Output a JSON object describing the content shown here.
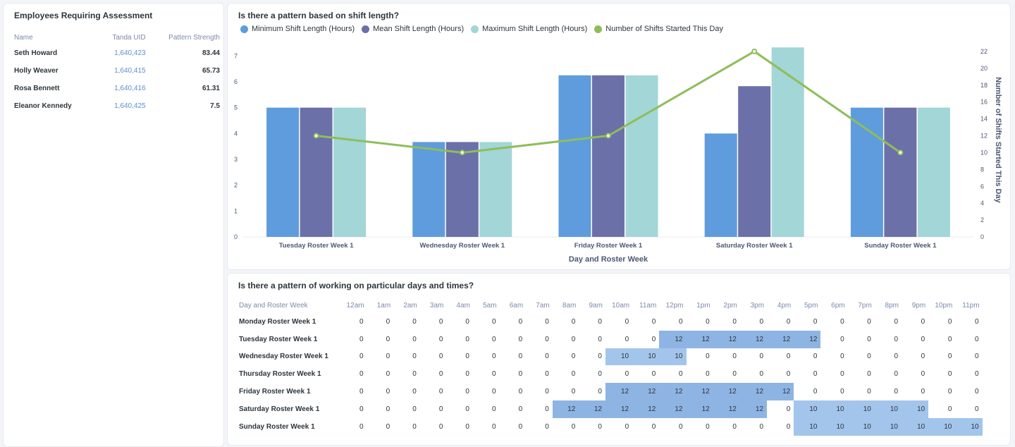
{
  "colors": {
    "min_bar": "#5f9cdd",
    "mean_bar": "#6c70a8",
    "max_bar": "#a3d6d6",
    "line": "#8fbd5a",
    "heat12": "#8eb4e3",
    "heat10": "#a3c5ec"
  },
  "employees": {
    "title": "Employees Requiring Assessment",
    "columns": [
      "Name",
      "Tanda UID",
      "Pattern Strength"
    ],
    "rows": [
      {
        "name": "Seth Howard",
        "uid": "1,640,423",
        "strength": "83.44"
      },
      {
        "name": "Holly Weaver",
        "uid": "1,640,415",
        "strength": "65.73"
      },
      {
        "name": "Rosa Bennett",
        "uid": "1,640,416",
        "strength": "61.31"
      },
      {
        "name": "Eleanor Kennedy",
        "uid": "1,640,425",
        "strength": "7.5"
      }
    ]
  },
  "chart_data": {
    "type": "bar",
    "title": "Is there a pattern based on shift length?",
    "xlabel": "Day and Roster Week",
    "ylabel": "",
    "y2label": "Number of Shifts Started This Day",
    "ylim": [
      0,
      7.5
    ],
    "y2lim": [
      0,
      23
    ],
    "yticks": [
      0,
      1,
      2,
      3,
      4,
      5,
      6,
      7
    ],
    "y2ticks": [
      0,
      2,
      4,
      6,
      8,
      10,
      12,
      14,
      16,
      18,
      20,
      22
    ],
    "categories": [
      "Tuesday Roster Week 1",
      "Wednesday Roster Week 1",
      "Friday Roster Week 1",
      "Saturday Roster Week 1",
      "Sunday Roster Week 1"
    ],
    "series": [
      {
        "name": "Minimum Shift Length (Hours)",
        "type": "bar",
        "axis": "left",
        "values": [
          5,
          3.67,
          6.25,
          4,
          5
        ]
      },
      {
        "name": "Mean Shift Length (Hours)",
        "type": "bar",
        "axis": "left",
        "values": [
          5,
          3.67,
          6.25,
          5.83,
          5
        ]
      },
      {
        "name": "Maximum Shift Length (Hours)",
        "type": "bar",
        "axis": "left",
        "values": [
          5,
          3.67,
          6.25,
          7.33,
          5
        ]
      },
      {
        "name": "Number of Shifts Started This Day",
        "type": "line",
        "axis": "right",
        "values": [
          12,
          10,
          12,
          22,
          10
        ]
      }
    ]
  },
  "heatmap": {
    "title": "Is there a pattern of working on particular days and times?",
    "row_header": "Day and Roster Week",
    "hours": [
      "12am",
      "1am",
      "2am",
      "3am",
      "4am",
      "5am",
      "6am",
      "7am",
      "8am",
      "9am",
      "10am",
      "11am",
      "12pm",
      "1pm",
      "2pm",
      "3pm",
      "4pm",
      "5pm",
      "6pm",
      "7pm",
      "8pm",
      "9pm",
      "10pm",
      "11pm"
    ],
    "rows": [
      {
        "label": "Monday Roster Week 1",
        "values": [
          0,
          0,
          0,
          0,
          0,
          0,
          0,
          0,
          0,
          0,
          0,
          0,
          0,
          0,
          0,
          0,
          0,
          0,
          0,
          0,
          0,
          0,
          0,
          0
        ]
      },
      {
        "label": "Tuesday Roster Week 1",
        "values": [
          0,
          0,
          0,
          0,
          0,
          0,
          0,
          0,
          0,
          0,
          0,
          0,
          12,
          12,
          12,
          12,
          12,
          12,
          0,
          0,
          0,
          0,
          0,
          0
        ]
      },
      {
        "label": "Wednesday Roster Week 1",
        "values": [
          0,
          0,
          0,
          0,
          0,
          0,
          0,
          0,
          0,
          0,
          10,
          10,
          10,
          0,
          0,
          0,
          0,
          0,
          0,
          0,
          0,
          0,
          0,
          0
        ]
      },
      {
        "label": "Thursday Roster Week 1",
        "values": [
          0,
          0,
          0,
          0,
          0,
          0,
          0,
          0,
          0,
          0,
          0,
          0,
          0,
          0,
          0,
          0,
          0,
          0,
          0,
          0,
          0,
          0,
          0,
          0
        ]
      },
      {
        "label": "Friday Roster Week 1",
        "values": [
          0,
          0,
          0,
          0,
          0,
          0,
          0,
          0,
          0,
          0,
          12,
          12,
          12,
          12,
          12,
          12,
          12,
          0,
          0,
          0,
          0,
          0,
          0,
          0
        ]
      },
      {
        "label": "Saturday Roster Week 1",
        "values": [
          0,
          0,
          0,
          0,
          0,
          0,
          0,
          0,
          12,
          12,
          12,
          12,
          12,
          12,
          12,
          12,
          0,
          10,
          10,
          10,
          10,
          10,
          0,
          0
        ]
      },
      {
        "label": "Sunday Roster Week 1",
        "values": [
          0,
          0,
          0,
          0,
          0,
          0,
          0,
          0,
          0,
          0,
          0,
          0,
          0,
          0,
          0,
          0,
          0,
          10,
          10,
          10,
          10,
          10,
          10,
          10
        ]
      }
    ]
  }
}
